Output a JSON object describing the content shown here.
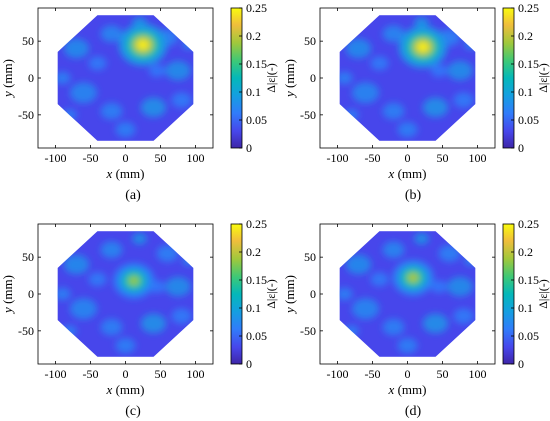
{
  "chart_data": [
    {
      "type": "heatmap",
      "panel_label": "(a)",
      "xlabel_var": "x",
      "xlabel_unit": " (mm)",
      "ylabel_var": "y",
      "ylabel_unit": " (mm)",
      "xlim": [
        -125,
        125
      ],
      "ylim": [
        -95,
        95
      ],
      "x_ticks": [
        -100,
        -50,
        0,
        50,
        100
      ],
      "y_ticks": [
        -50,
        0,
        50
      ],
      "domain_shape": "octagon with radius about 105 mm",
      "hotspot": {
        "x": 25,
        "y": 45,
        "peak_value": 0.25,
        "size": "large"
      },
      "colorbar": {
        "label": "Δ|ε|(-)",
        "min": 0,
        "max": 0.25,
        "ticks": [
          0,
          0.05,
          0.1,
          0.15,
          0.2,
          0.25
        ],
        "tick_labels": [
          "0",
          "0.05",
          "0.1",
          "0.15",
          "0.2",
          "0.25"
        ],
        "colormap": "parula"
      }
    },
    {
      "type": "heatmap",
      "panel_label": "(b)",
      "xlabel_var": "x",
      "xlabel_unit": " (mm)",
      "ylabel_var": "y",
      "ylabel_unit": " (mm)",
      "xlim": [
        -125,
        125
      ],
      "ylim": [
        -95,
        95
      ],
      "x_ticks": [
        -100,
        -50,
        0,
        50,
        100
      ],
      "y_ticks": [
        -50,
        0,
        50
      ],
      "domain_shape": "octagon with radius about 105 mm",
      "hotspot": {
        "x": 22,
        "y": 42,
        "peak_value": 0.25,
        "size": "large"
      },
      "colorbar": {
        "label": "Δ|ε|(-)",
        "min": 0,
        "max": 0.25,
        "ticks": [
          0,
          0.05,
          0.1,
          0.15,
          0.2,
          0.25
        ],
        "tick_labels": [
          "0",
          "0.05",
          "0.1",
          "0.15",
          "0.2",
          "0.25"
        ],
        "colormap": "parula"
      }
    },
    {
      "type": "heatmap",
      "panel_label": "(c)",
      "xlabel_var": "x",
      "xlabel_unit": " (mm)",
      "ylabel_var": "y",
      "ylabel_unit": " (mm)",
      "xlim": [
        -125,
        125
      ],
      "ylim": [
        -95,
        95
      ],
      "x_ticks": [
        -100,
        -50,
        0,
        50,
        100
      ],
      "y_ticks": [
        -50,
        0,
        50
      ],
      "domain_shape": "octagon with radius about 105 mm",
      "hotspot": {
        "x": 12,
        "y": 18,
        "peak_value": 0.19,
        "size": "medium"
      },
      "colorbar": {
        "label": "Δ|ε|(-)",
        "min": 0,
        "max": 0.25,
        "ticks": [
          0,
          0.05,
          0.1,
          0.15,
          0.2,
          0.25
        ],
        "tick_labels": [
          "0",
          "0.05",
          "0.1",
          "0.15",
          "0.2",
          "0.25"
        ],
        "colormap": "parula"
      }
    },
    {
      "type": "heatmap",
      "panel_label": "(d)",
      "xlabel_var": "x",
      "xlabel_unit": " (mm)",
      "ylabel_var": "y",
      "ylabel_unit": " (mm)",
      "xlim": [
        -125,
        125
      ],
      "ylim": [
        -95,
        95
      ],
      "x_ticks": [
        -100,
        -50,
        0,
        50,
        100
      ],
      "y_ticks": [
        -50,
        0,
        50
      ],
      "domain_shape": "octagon with radius about 105 mm",
      "hotspot": {
        "x": 8,
        "y": 22,
        "peak_value": 0.2,
        "size": "medium"
      },
      "colorbar": {
        "label": "Δ|ε|(-)",
        "min": 0,
        "max": 0.25,
        "ticks": [
          0,
          0.05,
          0.1,
          0.15,
          0.2,
          0.25
        ],
        "tick_labels": [
          "0",
          "0.05",
          "0.1",
          "0.15",
          "0.2",
          "0.25"
        ],
        "colormap": "parula"
      }
    }
  ]
}
